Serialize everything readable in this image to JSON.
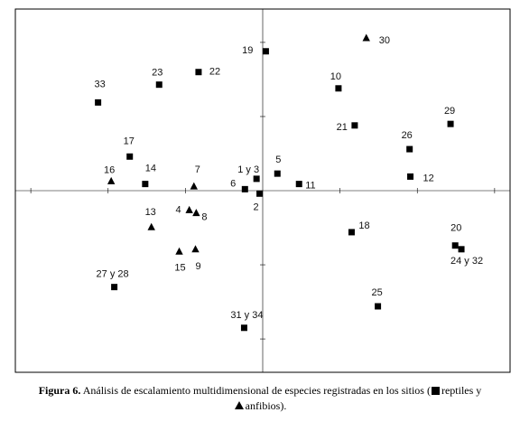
{
  "chart_data": {
    "type": "scatter",
    "title": "",
    "xlabel": "",
    "ylabel": "",
    "grid": false,
    "axes_through_origin": true,
    "xlim": [
      -3.2,
      3.2
    ],
    "ylim": [
      -2.45,
      2.45
    ],
    "series": [
      {
        "name": "reptiles",
        "marker": "square",
        "points": [
          {
            "label": "19",
            "x": 0.04,
            "y": 1.88
          },
          {
            "label": "22",
            "x": -0.83,
            "y": 1.6
          },
          {
            "label": "23",
            "x": -1.34,
            "y": 1.43
          },
          {
            "label": "33",
            "x": -2.13,
            "y": 1.19
          },
          {
            "label": "10",
            "x": 0.98,
            "y": 1.38
          },
          {
            "label": "21",
            "x": 1.19,
            "y": 0.88
          },
          {
            "label": "29",
            "x": 2.43,
            "y": 0.9
          },
          {
            "label": "26",
            "x": 1.9,
            "y": 0.56
          },
          {
            "label": "12",
            "x": 1.91,
            "y": 0.19
          },
          {
            "label": "17",
            "x": -1.72,
            "y": 0.46
          },
          {
            "label": "14",
            "x": -1.52,
            "y": 0.09
          },
          {
            "label": "1 y 3",
            "x": -0.08,
            "y": 0.16
          },
          {
            "label": "5",
            "x": 0.19,
            "y": 0.23
          },
          {
            "label": "6",
            "x": -0.23,
            "y": 0.02
          },
          {
            "label": "2",
            "x": -0.04,
            "y": -0.04
          },
          {
            "label": "11",
            "x": 0.47,
            "y": 0.09
          },
          {
            "label": "18",
            "x": 1.15,
            "y": -0.56
          },
          {
            "label": "20",
            "x": 2.49,
            "y": -0.74
          },
          {
            "label": "24 y 32",
            "x": 2.57,
            "y": -0.79
          },
          {
            "label": "27 y 28",
            "x": -1.92,
            "y": -1.3
          },
          {
            "label": "25",
            "x": 1.49,
            "y": -1.56
          },
          {
            "label": "31 y 34",
            "x": -0.24,
            "y": -1.85
          }
        ]
      },
      {
        "name": "anfibios",
        "marker": "triangle",
        "points": [
          {
            "label": "30",
            "x": 1.34,
            "y": 2.06
          },
          {
            "label": "16",
            "x": -1.96,
            "y": 0.13
          },
          {
            "label": "7",
            "x": -0.89,
            "y": 0.06
          },
          {
            "label": "13",
            "x": -1.44,
            "y": -0.49
          },
          {
            "label": "4",
            "x": -0.95,
            "y": -0.26
          },
          {
            "label": "8",
            "x": -0.86,
            "y": -0.3
          },
          {
            "label": "15",
            "x": -1.08,
            "y": -0.82
          },
          {
            "label": "9",
            "x": -0.87,
            "y": -0.79
          }
        ]
      }
    ]
  },
  "caption": {
    "figure_label": "Figura 6.",
    "text_before": " Análisis de escalamiento multidimensional de especies registradas en los sitios (",
    "reptiles": "reptiles y",
    "anfibios": "anfibios)."
  },
  "legend_markers": {
    "reptiles": "square",
    "anfibios": "triangle"
  }
}
